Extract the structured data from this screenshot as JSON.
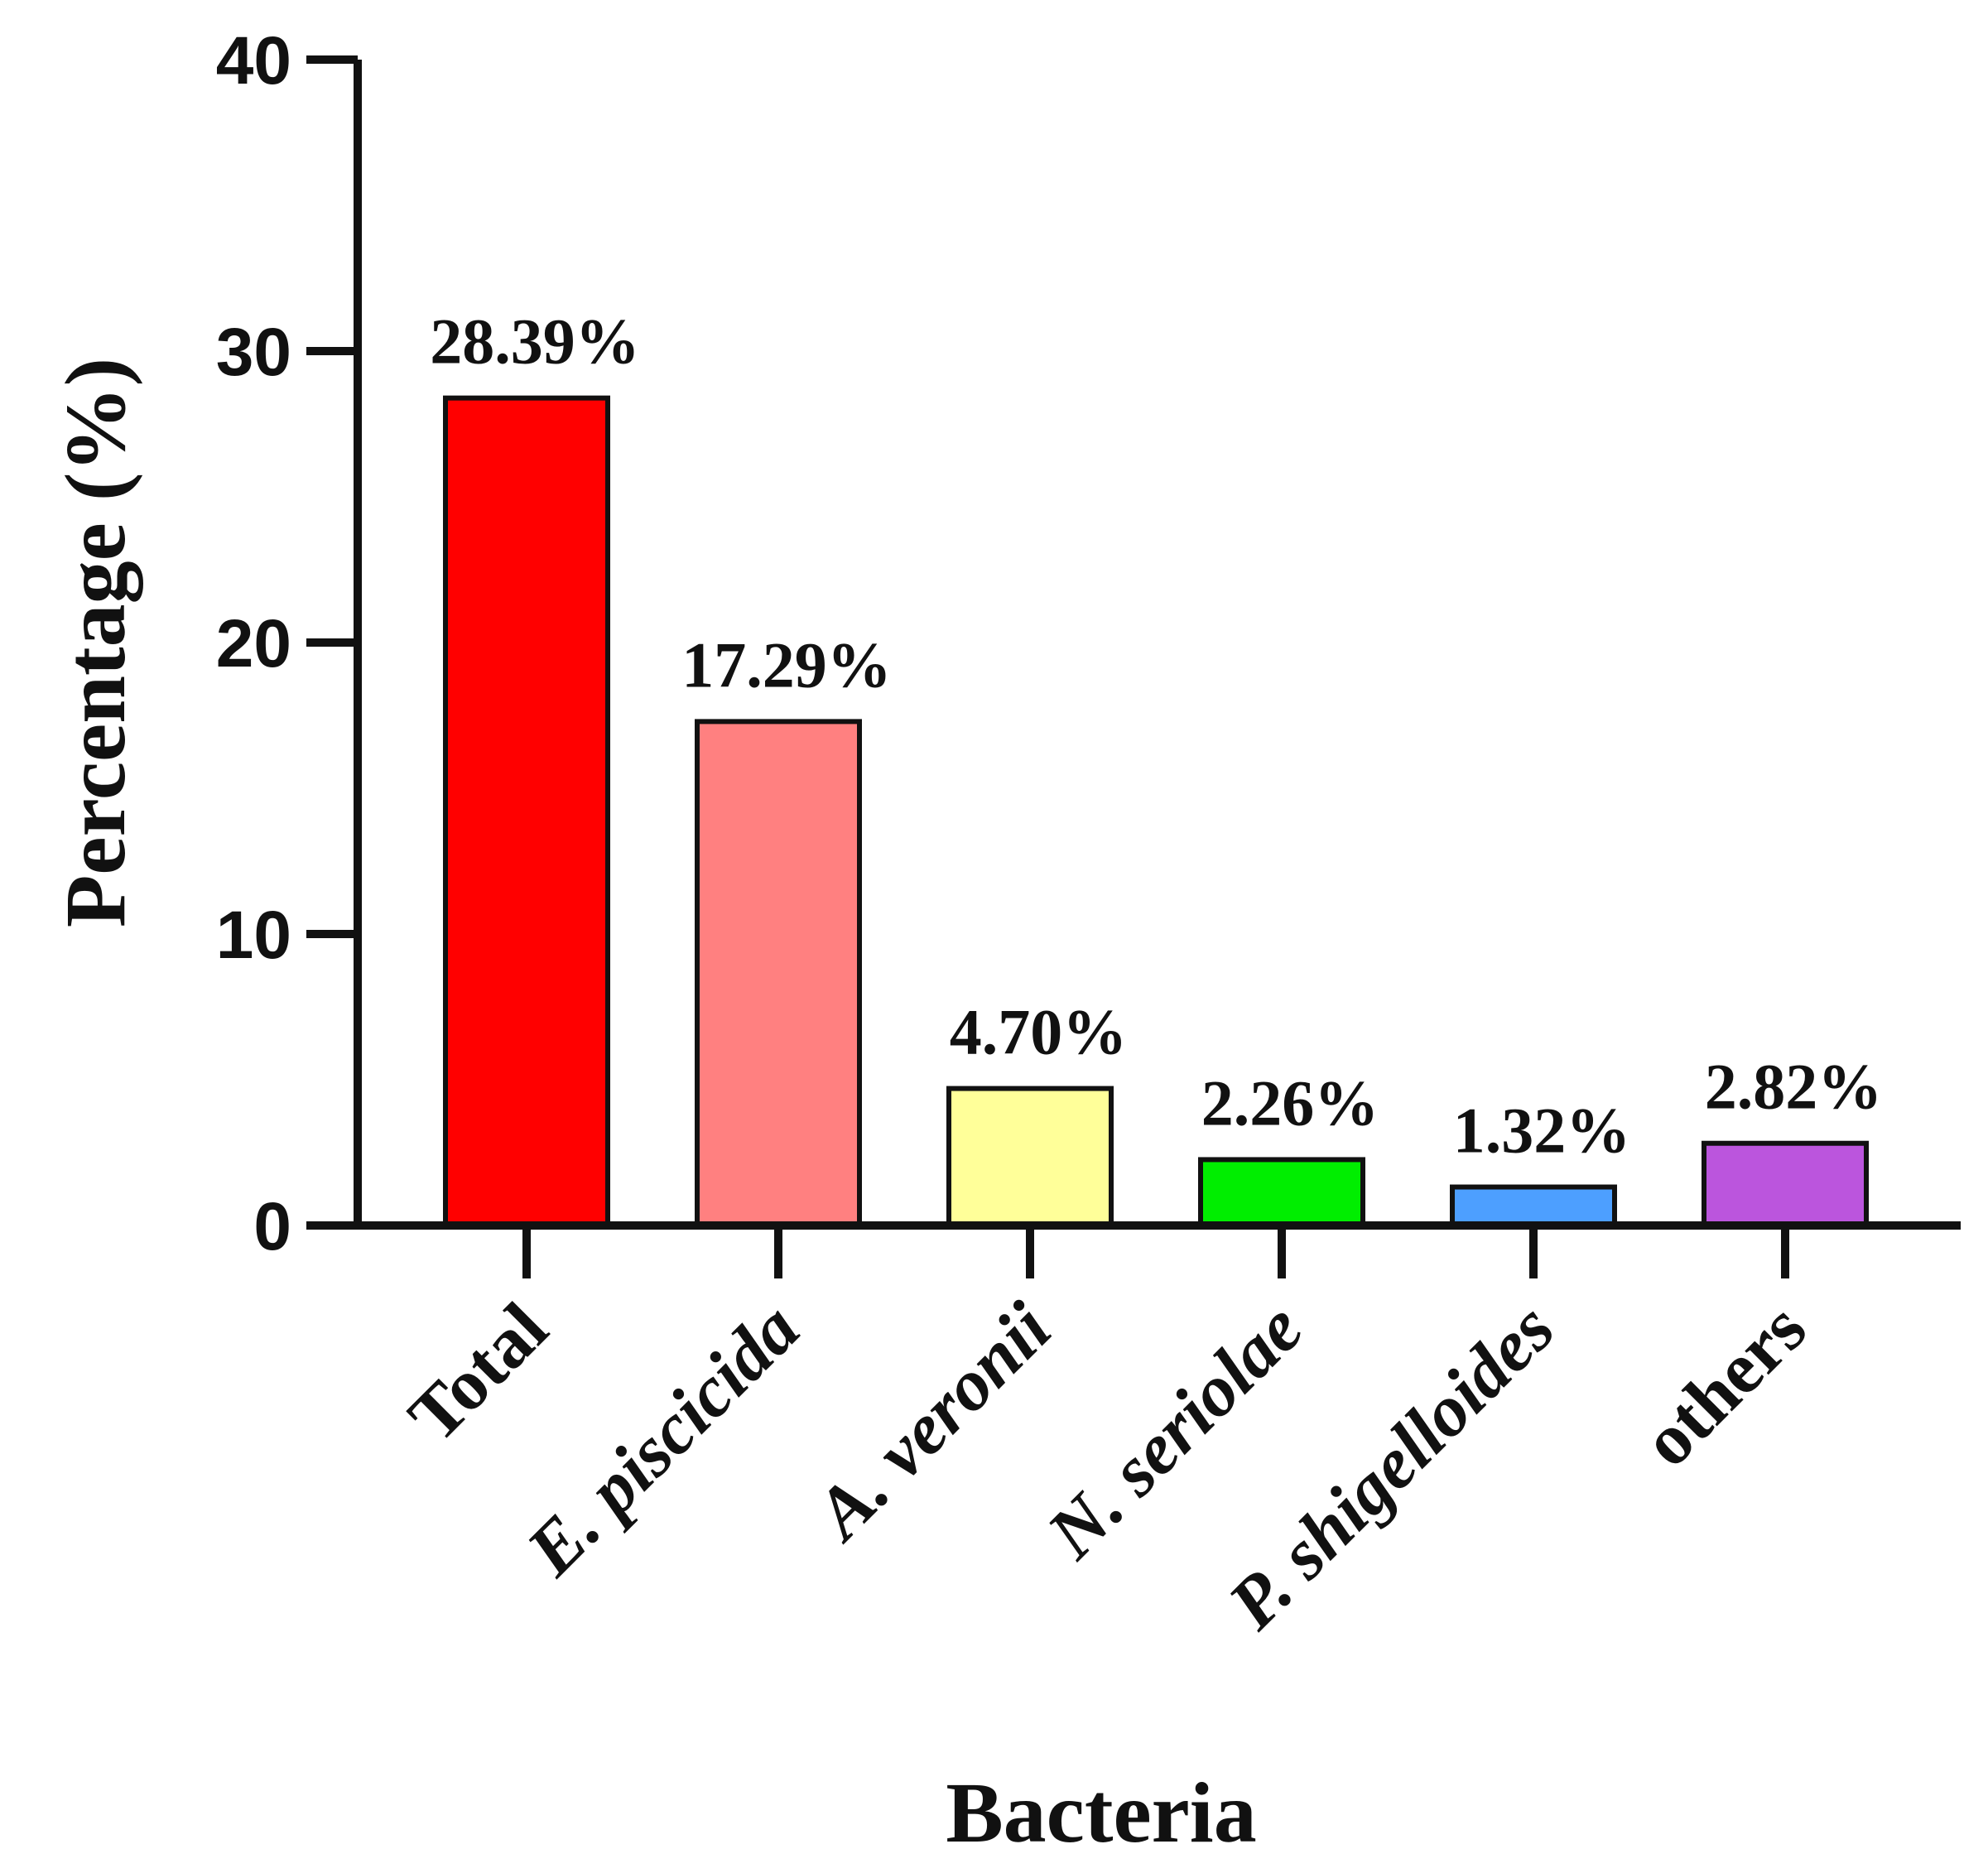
{
  "chart_data": {
    "type": "bar",
    "xlabel": "Bacteria",
    "ylabel": "Percentage (%)",
    "ylim": [
      0,
      40
    ],
    "yticks": [
      0,
      10,
      20,
      30,
      40
    ],
    "grid": false,
    "categories": [
      "Total",
      "E. piscicida",
      "A. veronii",
      "N. seriolae",
      "P. shigelloides",
      "others"
    ],
    "category_italic": [
      false,
      true,
      true,
      true,
      true,
      false
    ],
    "values": [
      28.39,
      17.29,
      4.7,
      2.26,
      1.32,
      2.82
    ],
    "data_labels": [
      "28.39%",
      "17.29%",
      "4.70%",
      "2.26%",
      "1.32%",
      "2.82%"
    ],
    "colors": [
      "#ff0000",
      "#ff8080",
      "#ffff99",
      "#00ee00",
      "#4d9fff",
      "#bb55dd"
    ]
  }
}
